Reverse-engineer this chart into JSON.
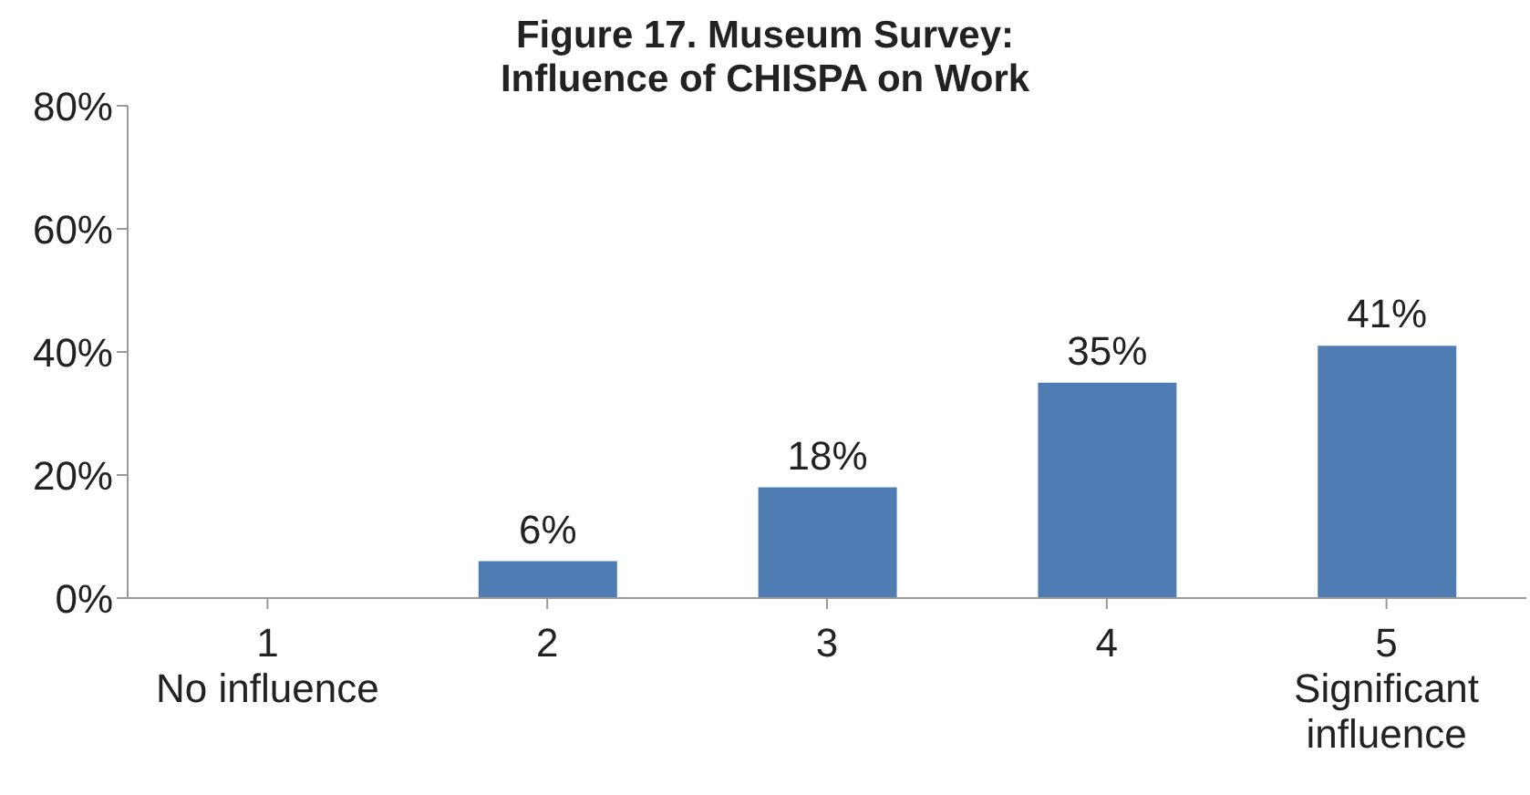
{
  "chart_data": {
    "type": "bar",
    "title": "Figure 17. Museum Survey:\nInfluence of CHISPA on Work",
    "categories": [
      "1\nNo influence",
      "2",
      "3",
      "4",
      "5\nSignificant\ninfluence"
    ],
    "values": [
      0,
      6,
      18,
      35,
      41
    ],
    "value_labels": [
      null,
      "6%",
      "18%",
      "35%",
      "41%"
    ],
    "color": "#4f7db3",
    "ylim": [
      0,
      80
    ],
    "yticks": [
      {
        "value": 0,
        "label": "0%"
      },
      {
        "value": 20,
        "label": "20%"
      },
      {
        "value": 40,
        "label": "40%"
      },
      {
        "value": 60,
        "label": "60%"
      },
      {
        "value": 80,
        "label": "80%"
      }
    ],
    "grid": false
  }
}
